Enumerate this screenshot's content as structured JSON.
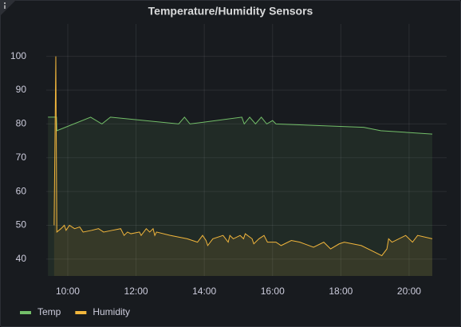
{
  "chart_data": {
    "type": "line",
    "title": "Temperature/Humidity Sensors",
    "area": true,
    "grid": true,
    "legend": "bottom-left",
    "xlim": [
      9.37,
      21.1
    ],
    "xticks": [
      {
        "value": 10,
        "label": "10:00"
      },
      {
        "value": 12,
        "label": "12:00"
      },
      {
        "value": 14,
        "label": "14:00"
      },
      {
        "value": 16,
        "label": "16:00"
      },
      {
        "value": 18,
        "label": "18:00"
      },
      {
        "value": 20,
        "label": "20:00"
      }
    ],
    "ylim": [
      35,
      109.6
    ],
    "yticks": [
      40,
      50,
      60,
      70,
      80,
      90,
      100
    ],
    "series": [
      {
        "name": "Temp",
        "color": "#73bf69",
        "x": [
          9.42,
          9.67,
          9.68,
          10.67,
          11.0,
          11.25,
          13.25,
          13.42,
          13.58,
          15.1,
          15.17,
          15.33,
          15.5,
          15.67,
          15.83,
          16.0,
          16.1,
          18.67,
          19.17,
          20.68
        ],
        "values": [
          82,
          82,
          78,
          82,
          80,
          82,
          80,
          82,
          80,
          82,
          80,
          82,
          80,
          82,
          80,
          81,
          80,
          79,
          78,
          77
        ]
      },
      {
        "name": "Humidity",
        "color": "#f2b63c",
        "x": [
          9.6,
          9.65,
          9.68,
          9.8,
          9.9,
          9.95,
          10.05,
          10.2,
          10.35,
          10.45,
          10.7,
          10.9,
          11.05,
          11.3,
          11.55,
          11.65,
          11.75,
          11.85,
          12.1,
          12.15,
          12.3,
          12.4,
          12.5,
          12.55,
          12.6,
          13.0,
          13.5,
          13.8,
          13.95,
          14.05,
          14.1,
          14.25,
          14.55,
          14.7,
          14.75,
          14.85,
          15.05,
          15.15,
          15.2,
          15.4,
          15.45,
          15.6,
          15.75,
          15.85,
          16.1,
          16.25,
          16.55,
          16.8,
          17.2,
          17.5,
          17.7,
          17.95,
          18.1,
          18.6,
          19.0,
          19.2,
          19.35,
          19.4,
          19.5,
          19.9,
          20.1,
          20.25,
          20.68
        ],
        "values": [
          50,
          100,
          48,
          49,
          50,
          48.5,
          50,
          49,
          49.5,
          48,
          48.5,
          49,
          48,
          48.5,
          49,
          47,
          48,
          47.5,
          48,
          47,
          49,
          48,
          49,
          47,
          48,
          47,
          46,
          45,
          47,
          45.5,
          44,
          46,
          47,
          45,
          47,
          46,
          47,
          46,
          47.5,
          46,
          44.5,
          46,
          47,
          45,
          45,
          44,
          45.5,
          45,
          43.5,
          45,
          43,
          44.5,
          45,
          44,
          42,
          41,
          43,
          46,
          45,
          47,
          45,
          47,
          46
        ]
      }
    ]
  }
}
